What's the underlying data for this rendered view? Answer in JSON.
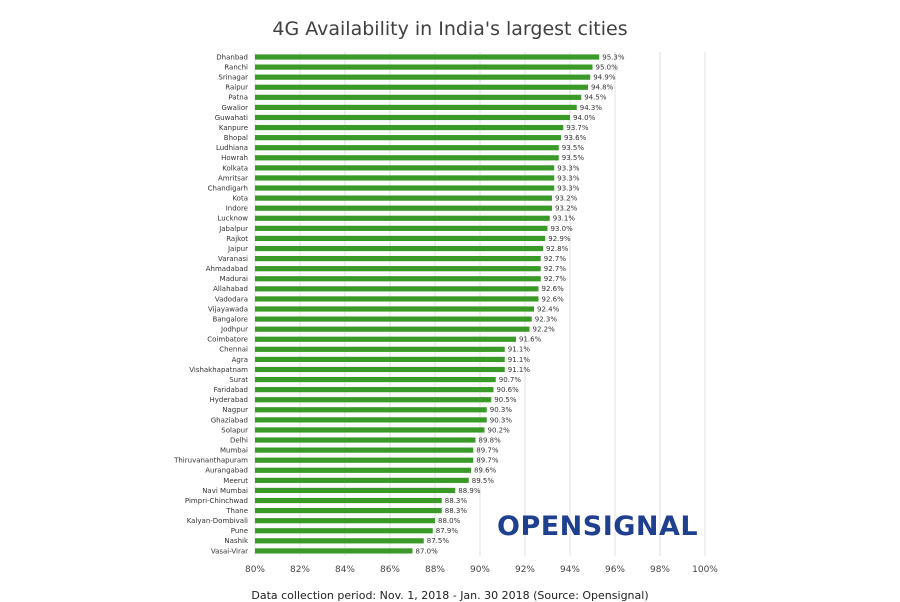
{
  "chart_data": {
    "type": "bar",
    "orientation": "horizontal",
    "title": "4G Availability in India's largest cities",
    "xlabel": "",
    "ylabel": "",
    "xlim": [
      80,
      100
    ],
    "x_ticks": [
      "80%",
      "82%",
      "84%",
      "86%",
      "88%",
      "90%",
      "92%",
      "94%",
      "96%",
      "98%",
      "100%"
    ],
    "grid": "vertical",
    "bar_color": "#3a9a28",
    "categories": [
      "Dhanbad",
      "Ranchi",
      "Srinagar",
      "Raipur",
      "Patna",
      "Gwalior",
      "Guwahati",
      "Kanpure",
      "Bhopal",
      "Ludhiana",
      "Howrah",
      "Kolkata",
      "Amritsar",
      "Chandigarh",
      "Kota",
      "Indore",
      "Lucknow",
      "Jabalpur",
      "Rajkot",
      "Jaipur",
      "Varanasi",
      "Ahmadabad",
      "Madurai",
      "Allahabad",
      "Vadodara",
      "Vijayawada",
      "Bangalore",
      "Jodhpur",
      "Coimbatore",
      "Chennai",
      "Agra",
      "Vishakhapatnam",
      "Surat",
      "Faridabad",
      "Hyderabad",
      "Nagpur",
      "Ghaziabad",
      "Solapur",
      "Delhi",
      "Mumbai",
      "Thiruvananthapuram",
      "Aurangabad",
      "Meerut",
      "Navi Mumbai",
      "Pimpri-Chinchwad",
      "Thane",
      "Kalyan-Dombivali",
      "Pune",
      "Nashik",
      "Vasai-Virar"
    ],
    "values": [
      95.3,
      95.0,
      94.9,
      94.8,
      94.5,
      94.3,
      94.0,
      93.7,
      93.6,
      93.5,
      93.5,
      93.3,
      93.3,
      93.3,
      93.2,
      93.2,
      93.1,
      93.0,
      92.9,
      92.8,
      92.7,
      92.7,
      92.7,
      92.6,
      92.6,
      92.4,
      92.3,
      92.2,
      91.6,
      91.1,
      91.1,
      91.1,
      90.7,
      90.6,
      90.5,
      90.3,
      90.3,
      90.2,
      89.8,
      89.7,
      89.7,
      89.6,
      89.5,
      88.9,
      88.3,
      88.3,
      88.0,
      87.9,
      87.5,
      87.0
    ],
    "value_labels": [
      "95.3%",
      "95.0%",
      "94.9%",
      "94.8%",
      "94.5%",
      "94.3%",
      "94.0%",
      "93.7%",
      "93.6%",
      "93.5%",
      "93.5%",
      "93.3%",
      "93.3%",
      "93.3%",
      "93.2%",
      "93.2%",
      "93.1%",
      "93.0%",
      "92.9%",
      "92.8%",
      "92.7%",
      "92.7%",
      "92.7%",
      "92.6%",
      "92.6%",
      "92.4%",
      "92.3%",
      "92.2%",
      "91.6%",
      "91.1%",
      "91.1%",
      "91.1%",
      "90.7%",
      "90.6%",
      "90.5%",
      "90.3%",
      "90.3%",
      "90.2%",
      "89.8%",
      "89.7%",
      "89.7%",
      "89.6%",
      "89.5%",
      "88.9%",
      "88.3%",
      "88.3%",
      "88.0%",
      "87.9%",
      "87.5%",
      "87.0%"
    ]
  },
  "logo": {
    "text": "OPENSIGNAL",
    "color": "#1f3f8f"
  },
  "footnote": "Data collection period: Nov. 1, 2018 - Jan. 30 2018 (Source: Opensignal)"
}
